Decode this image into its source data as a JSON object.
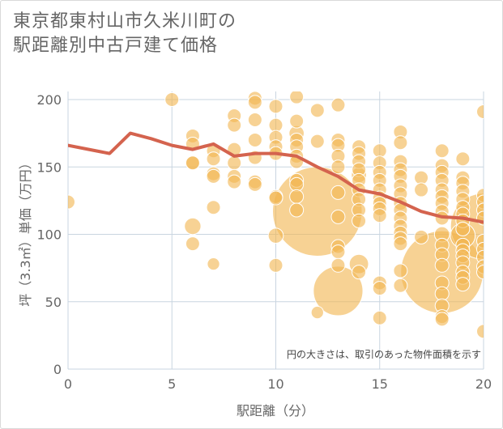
{
  "title_line1": "東京都東村山市久米川町の",
  "title_line2": "駅距離別中古戸建て価格",
  "note": "円の大きさは、取引のあった物件面積を示す",
  "colors": {
    "bubble": "#f2b653",
    "line": "#d4634e",
    "grid": "#c9d5e0",
    "text": "#666666"
  },
  "chart_data": {
    "type": "scatter",
    "xlabel": "駅距離（分）",
    "ylabel": "坪（3.3㎡）単価（万円）",
    "xlim": [
      0,
      20
    ],
    "ylim": [
      0,
      210
    ],
    "x_ticks": [
      "0",
      "5",
      "10",
      "15",
      "20"
    ],
    "y_ticks": [
      "0",
      "50",
      "100",
      "150",
      "200"
    ],
    "series": [
      {
        "kind": "bubble",
        "points": [
          {
            "x": 0,
            "y": 124,
            "s": 1
          },
          {
            "x": 5,
            "y": 200,
            "s": 1
          },
          {
            "x": 6,
            "y": 173,
            "s": 1
          },
          {
            "x": 6,
            "y": 167,
            "s": 1
          },
          {
            "x": 6,
            "y": 153,
            "s": 1
          },
          {
            "x": 6,
            "y": 153,
            "s": 1
          },
          {
            "x": 6,
            "y": 106,
            "s": 1.2
          },
          {
            "x": 6,
            "y": 93,
            "s": 1
          },
          {
            "x": 7,
            "y": 162,
            "s": 1
          },
          {
            "x": 7,
            "y": 156,
            "s": 1
          },
          {
            "x": 7,
            "y": 145,
            "s": 1
          },
          {
            "x": 7,
            "y": 143,
            "s": 1
          },
          {
            "x": 7,
            "y": 120,
            "s": 1
          },
          {
            "x": 7,
            "y": 78,
            "s": 0.9
          },
          {
            "x": 8,
            "y": 188,
            "s": 1
          },
          {
            "x": 8,
            "y": 181,
            "s": 1
          },
          {
            "x": 8,
            "y": 163,
            "s": 1
          },
          {
            "x": 8,
            "y": 153,
            "s": 1
          },
          {
            "x": 8,
            "y": 143,
            "s": 1
          },
          {
            "x": 8,
            "y": 139,
            "s": 1
          },
          {
            "x": 9,
            "y": 201,
            "s": 1
          },
          {
            "x": 9,
            "y": 198,
            "s": 1
          },
          {
            "x": 9,
            "y": 185,
            "s": 1
          },
          {
            "x": 9,
            "y": 170,
            "s": 1
          },
          {
            "x": 9,
            "y": 157,
            "s": 1
          },
          {
            "x": 9,
            "y": 139,
            "s": 1
          },
          {
            "x": 9,
            "y": 137,
            "s": 1
          },
          {
            "x": 10,
            "y": 195,
            "s": 1
          },
          {
            "x": 10,
            "y": 181,
            "s": 1
          },
          {
            "x": 10,
            "y": 172,
            "s": 1
          },
          {
            "x": 10,
            "y": 165,
            "s": 1
          },
          {
            "x": 10,
            "y": 160,
            "s": 1
          },
          {
            "x": 10,
            "y": 128,
            "s": 1
          },
          {
            "x": 10,
            "y": 127,
            "s": 1
          },
          {
            "x": 10,
            "y": 99,
            "s": 1.1
          },
          {
            "x": 10,
            "y": 77,
            "s": 1
          },
          {
            "x": 11,
            "y": 202,
            "s": 1
          },
          {
            "x": 11,
            "y": 184,
            "s": 1
          },
          {
            "x": 11,
            "y": 175,
            "s": 1.1
          },
          {
            "x": 11,
            "y": 170,
            "s": 1
          },
          {
            "x": 11,
            "y": 165,
            "s": 1
          },
          {
            "x": 11,
            "y": 158,
            "s": 1
          },
          {
            "x": 11,
            "y": 154,
            "s": 1
          },
          {
            "x": 11,
            "y": 140,
            "s": 1
          },
          {
            "x": 11,
            "y": 137,
            "s": 1
          },
          {
            "x": 11,
            "y": 128,
            "s": 1
          },
          {
            "x": 11,
            "y": 118,
            "s": 1
          },
          {
            "x": 12,
            "y": 117,
            "s": 6.5
          },
          {
            "x": 12,
            "y": 192,
            "s": 1
          },
          {
            "x": 12,
            "y": 169,
            "s": 1
          },
          {
            "x": 12,
            "y": 42,
            "s": 0.9
          },
          {
            "x": 13,
            "y": 196,
            "s": 1
          },
          {
            "x": 13,
            "y": 170,
            "s": 1
          },
          {
            "x": 13,
            "y": 166,
            "s": 1
          },
          {
            "x": 13,
            "y": 158,
            "s": 1
          },
          {
            "x": 13,
            "y": 150,
            "s": 1
          },
          {
            "x": 13,
            "y": 131,
            "s": 1
          },
          {
            "x": 13,
            "y": 113,
            "s": 1
          },
          {
            "x": 13,
            "y": 91,
            "s": 1
          },
          {
            "x": 13,
            "y": 87,
            "s": 1
          },
          {
            "x": 13,
            "y": 77,
            "s": 1
          },
          {
            "x": 13,
            "y": 58,
            "s": 3.6
          },
          {
            "x": 14,
            "y": 165,
            "s": 1
          },
          {
            "x": 14,
            "y": 160,
            "s": 1
          },
          {
            "x": 14,
            "y": 154,
            "s": 1
          },
          {
            "x": 14,
            "y": 148,
            "s": 1
          },
          {
            "x": 14,
            "y": 144,
            "s": 1.1
          },
          {
            "x": 14,
            "y": 140,
            "s": 1
          },
          {
            "x": 14,
            "y": 133,
            "s": 1
          },
          {
            "x": 14,
            "y": 126,
            "s": 1
          },
          {
            "x": 14,
            "y": 118,
            "s": 1
          },
          {
            "x": 14,
            "y": 110,
            "s": 1
          },
          {
            "x": 14,
            "y": 78,
            "s": 1.4
          },
          {
            "x": 14,
            "y": 72,
            "s": 1
          },
          {
            "x": 15,
            "y": 162,
            "s": 1
          },
          {
            "x": 15,
            "y": 153,
            "s": 1
          },
          {
            "x": 15,
            "y": 146,
            "s": 1
          },
          {
            "x": 15,
            "y": 140,
            "s": 1
          },
          {
            "x": 15,
            "y": 133,
            "s": 1
          },
          {
            "x": 15,
            "y": 127,
            "s": 1
          },
          {
            "x": 15,
            "y": 123,
            "s": 1
          },
          {
            "x": 15,
            "y": 119,
            "s": 1
          },
          {
            "x": 15,
            "y": 114,
            "s": 1
          },
          {
            "x": 15,
            "y": 64,
            "s": 1
          },
          {
            "x": 15,
            "y": 60,
            "s": 1
          },
          {
            "x": 15,
            "y": 38,
            "s": 1
          },
          {
            "x": 16,
            "y": 176,
            "s": 1
          },
          {
            "x": 16,
            "y": 168,
            "s": 1
          },
          {
            "x": 16,
            "y": 154,
            "s": 1
          },
          {
            "x": 16,
            "y": 148,
            "s": 1
          },
          {
            "x": 16,
            "y": 143,
            "s": 1
          },
          {
            "x": 16,
            "y": 136,
            "s": 1
          },
          {
            "x": 16,
            "y": 130,
            "s": 1
          },
          {
            "x": 16,
            "y": 123,
            "s": 1
          },
          {
            "x": 16,
            "y": 118,
            "s": 1
          },
          {
            "x": 16,
            "y": 112,
            "s": 1
          },
          {
            "x": 16,
            "y": 106,
            "s": 1
          },
          {
            "x": 16,
            "y": 101,
            "s": 1
          },
          {
            "x": 16,
            "y": 97,
            "s": 1
          },
          {
            "x": 16,
            "y": 93,
            "s": 1
          },
          {
            "x": 16,
            "y": 73,
            "s": 1
          },
          {
            "x": 16,
            "y": 62,
            "s": 1
          },
          {
            "x": 17,
            "y": 142,
            "s": 1
          },
          {
            "x": 17,
            "y": 133,
            "s": 1
          },
          {
            "x": 17,
            "y": 98,
            "s": 1
          },
          {
            "x": 18,
            "y": 162,
            "s": 1
          },
          {
            "x": 18,
            "y": 151,
            "s": 1
          },
          {
            "x": 18,
            "y": 146,
            "s": 1
          },
          {
            "x": 18,
            "y": 140,
            "s": 1
          },
          {
            "x": 18,
            "y": 133,
            "s": 1
          },
          {
            "x": 18,
            "y": 128,
            "s": 1
          },
          {
            "x": 18,
            "y": 123,
            "s": 1
          },
          {
            "x": 18,
            "y": 117,
            "s": 1
          },
          {
            "x": 18,
            "y": 112,
            "s": 1
          },
          {
            "x": 18,
            "y": 100,
            "s": 1.1
          },
          {
            "x": 18,
            "y": 92,
            "s": 1
          },
          {
            "x": 18,
            "y": 85,
            "s": 1
          },
          {
            "x": 18,
            "y": 77,
            "s": 1
          },
          {
            "x": 18,
            "y": 72,
            "s": 6.0
          },
          {
            "x": 18,
            "y": 64,
            "s": 1
          },
          {
            "x": 18,
            "y": 56,
            "s": 1
          },
          {
            "x": 18,
            "y": 47,
            "s": 1
          },
          {
            "x": 18,
            "y": 39,
            "s": 1
          },
          {
            "x": 18,
            "y": 37,
            "s": 1
          },
          {
            "x": 19,
            "y": 156,
            "s": 1
          },
          {
            "x": 19,
            "y": 142,
            "s": 1
          },
          {
            "x": 19,
            "y": 138,
            "s": 1
          },
          {
            "x": 19,
            "y": 132,
            "s": 1
          },
          {
            "x": 19,
            "y": 126,
            "s": 1
          },
          {
            "x": 19,
            "y": 120,
            "s": 1
          },
          {
            "x": 19,
            "y": 115,
            "s": 1
          },
          {
            "x": 19,
            "y": 110,
            "s": 1
          },
          {
            "x": 19,
            "y": 104,
            "s": 1
          },
          {
            "x": 19,
            "y": 99,
            "s": 1.8
          },
          {
            "x": 19,
            "y": 92,
            "s": 1
          },
          {
            "x": 19,
            "y": 88,
            "s": 1
          },
          {
            "x": 19,
            "y": 84,
            "s": 1
          },
          {
            "x": 19,
            "y": 79,
            "s": 1
          },
          {
            "x": 19,
            "y": 72,
            "s": 1
          },
          {
            "x": 19,
            "y": 68,
            "s": 1
          },
          {
            "x": 19,
            "y": 63,
            "s": 1
          },
          {
            "x": 20,
            "y": 191,
            "s": 1
          },
          {
            "x": 20,
            "y": 129,
            "s": 1
          },
          {
            "x": 20,
            "y": 124,
            "s": 1
          },
          {
            "x": 20,
            "y": 118,
            "s": 1
          },
          {
            "x": 20,
            "y": 112,
            "s": 1
          },
          {
            "x": 20,
            "y": 106,
            "s": 4.8
          },
          {
            "x": 20,
            "y": 95,
            "s": 1
          },
          {
            "x": 20,
            "y": 89,
            "s": 1
          },
          {
            "x": 20,
            "y": 83,
            "s": 1
          },
          {
            "x": 20,
            "y": 76,
            "s": 1
          },
          {
            "x": 20,
            "y": 72,
            "s": 1
          },
          {
            "x": 20,
            "y": 28,
            "s": 1
          }
        ]
      },
      {
        "kind": "line",
        "x": [
          0,
          1,
          2,
          3,
          4,
          5,
          6,
          7,
          8,
          9,
          10,
          11,
          12,
          13,
          14,
          15,
          16,
          17,
          18,
          19,
          20
        ],
        "y": [
          166,
          163,
          160,
          175,
          171,
          166,
          163,
          167,
          158,
          160,
          160,
          158,
          150,
          143,
          133,
          130,
          124,
          117,
          113,
          112,
          109
        ]
      }
    ]
  }
}
